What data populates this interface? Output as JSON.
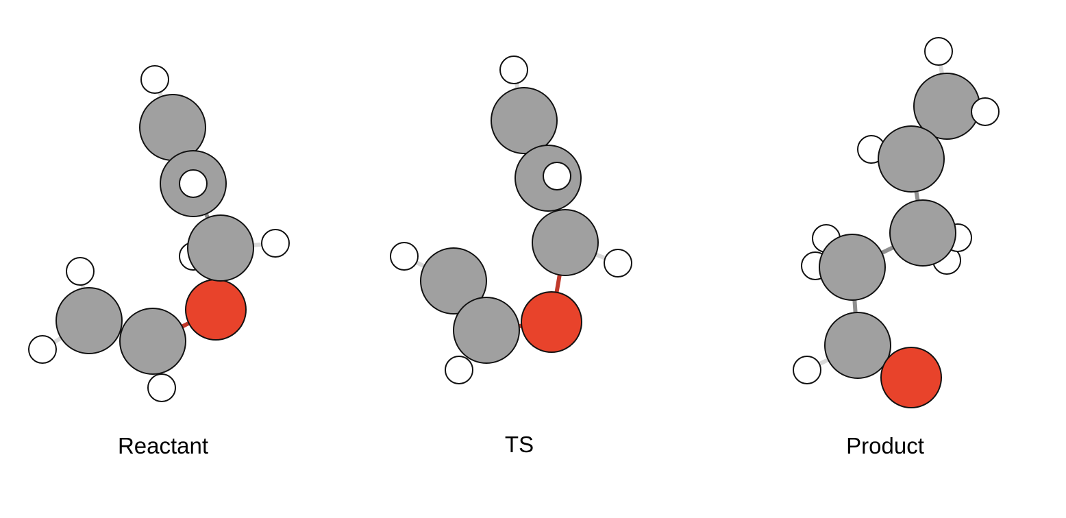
{
  "colors": {
    "carbon": "#a0a0a0",
    "oxygen": "#e8432b",
    "hydrogen": "#ffffff",
    "outline": "#111111",
    "bond_cc": "#8f8f8f",
    "bond_ch": "#d9d9d9",
    "bond_co": "#c0392b"
  },
  "molecules": [
    {
      "label": "Reactant"
    },
    {
      "label": "TS"
    },
    {
      "label": "Product"
    }
  ]
}
